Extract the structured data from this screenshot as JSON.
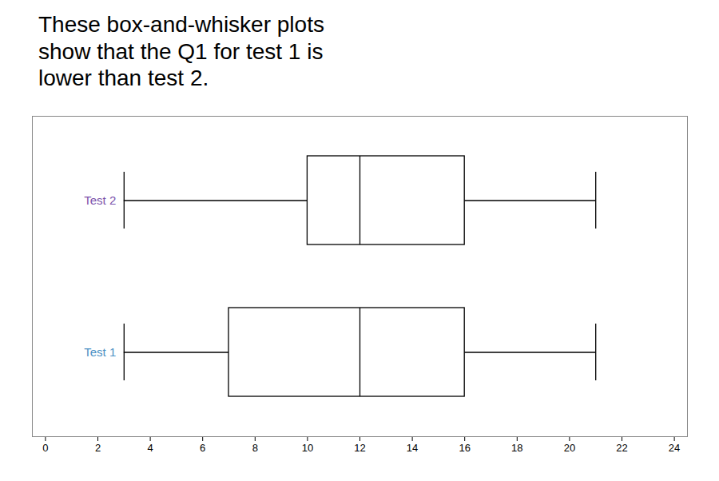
{
  "chart_data": {
    "type": "box",
    "title": "These box-and-whisker plots\nshow that the Q1 for test 1 is\nlower than test 2.",
    "categories": [
      "Test 2",
      "Test 1"
    ],
    "series": [
      {
        "name": "Test 2",
        "color": "#7B52AB",
        "whisker_low": 3,
        "q1": 10,
        "median": 12,
        "q3": 16,
        "whisker_high": 21
      },
      {
        "name": "Test 1",
        "color": "#4A90C4",
        "whisker_low": 3,
        "q1": 7,
        "median": 12,
        "q3": 16,
        "whisker_high": 21
      }
    ],
    "xlim": [
      -0.5,
      24.5
    ],
    "xticks": [
      0,
      2,
      4,
      6,
      8,
      10,
      12,
      14,
      16,
      18,
      20,
      22,
      24
    ],
    "grid": false,
    "tick_labels": "x"
  }
}
